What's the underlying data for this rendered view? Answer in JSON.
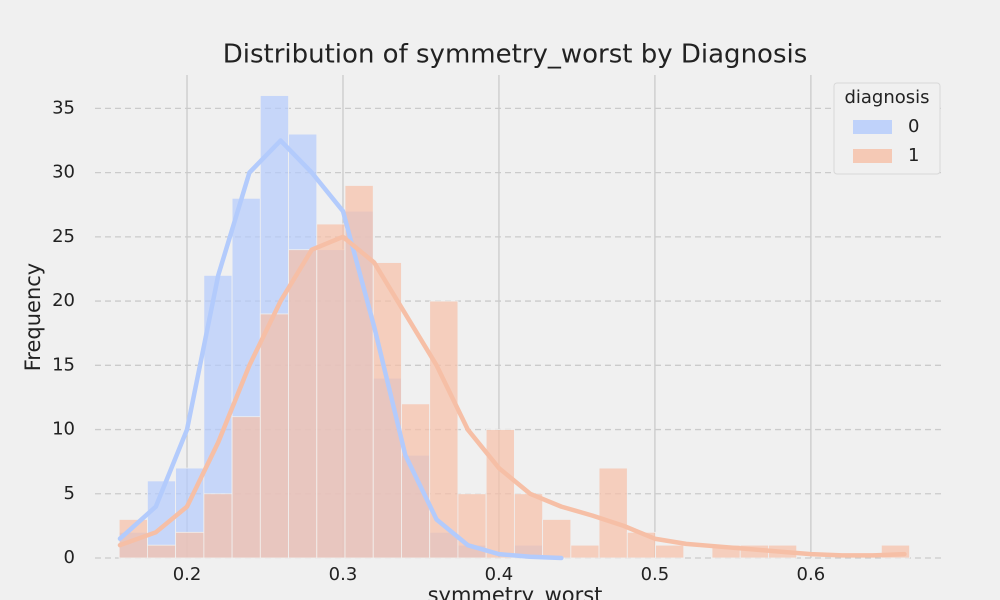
{
  "chart_data": {
    "type": "histogram",
    "title": "Distribution of symmetry_worst by Diagnosis",
    "xlabel": "symmetry_worst",
    "ylabel": "Frequency",
    "bins": [
      0.1565,
      0.1746,
      0.1927,
      0.2108,
      0.2289,
      0.247,
      0.2651,
      0.2832,
      0.3013,
      0.3194,
      0.3375,
      0.3556,
      0.3737,
      0.3918,
      0.4099,
      0.428,
      0.4461,
      0.4642,
      0.4823,
      0.5004,
      0.5185,
      0.5366,
      0.5547,
      0.5728,
      0.5909,
      0.609,
      0.6271,
      0.6452,
      0.6633
    ],
    "series": [
      {
        "name": "0",
        "color": "#b3cbfc",
        "values": [
          2,
          6,
          7,
          22,
          28,
          36,
          33,
          24,
          27,
          14,
          8,
          2,
          1,
          0,
          1,
          0,
          0,
          0,
          0,
          0,
          0,
          0,
          0,
          0,
          0,
          0,
          0,
          0
        ],
        "kde": {
          "x": [
            0.157,
            0.18,
            0.2,
            0.22,
            0.24,
            0.26,
            0.28,
            0.3,
            0.32,
            0.34,
            0.36,
            0.38,
            0.4,
            0.42,
            0.44
          ],
          "y": [
            1.5,
            4,
            10,
            22,
            30,
            32.5,
            30,
            27,
            18,
            8,
            3,
            1,
            0.3,
            0.1,
            0
          ]
        }
      },
      {
        "name": "1",
        "color": "#f6bfa6",
        "values": [
          3,
          1,
          2,
          5,
          11,
          19,
          24,
          26,
          29,
          23,
          12,
          20,
          5,
          10,
          5,
          3,
          1,
          7,
          2,
          1,
          0,
          1,
          1,
          1,
          0,
          0,
          0,
          1
        ],
        "kde": {
          "x": [
            0.157,
            0.18,
            0.2,
            0.22,
            0.24,
            0.26,
            0.28,
            0.3,
            0.32,
            0.34,
            0.36,
            0.38,
            0.4,
            0.42,
            0.44,
            0.46,
            0.48,
            0.5,
            0.52,
            0.54,
            0.56,
            0.58,
            0.6,
            0.62,
            0.64,
            0.66
          ],
          "y": [
            1,
            2,
            4,
            9,
            15,
            20,
            24,
            25,
            23,
            19,
            15,
            10,
            7,
            5,
            4,
            3.3,
            2.5,
            1.5,
            1.1,
            0.9,
            0.7,
            0.5,
            0.3,
            0.2,
            0.2,
            0.3
          ]
        }
      }
    ],
    "legend_title": "diagnosis",
    "legend": "upper right",
    "xlim": [
      0.141,
      0.686
    ],
    "ylim": [
      0,
      37.6
    ],
    "xticks": [
      0.2,
      0.3,
      0.4,
      0.5,
      0.6
    ],
    "yticks": [
      0,
      5,
      10,
      15,
      20,
      25,
      30,
      35
    ],
    "grid": true
  }
}
